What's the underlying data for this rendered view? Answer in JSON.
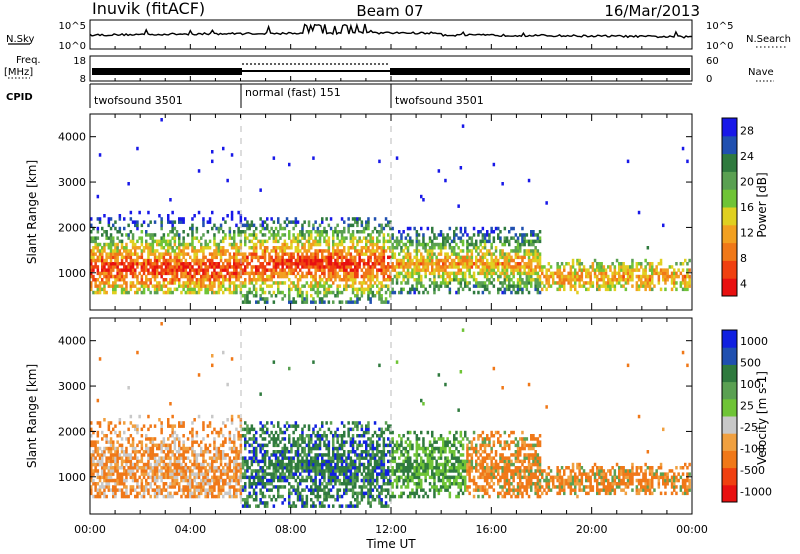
{
  "header": {
    "title": "Inuvik (fitACF)",
    "beam": "Beam 07",
    "date": "16/Mar/2013"
  },
  "strips": {
    "nsky_label": "N.Sky",
    "nsky_ticks": [
      "10^5",
      "10^0"
    ],
    "nsearch_label": "N.Search",
    "nsearch_ticks": [
      "10^5",
      "10^0"
    ],
    "freq_label": "Freq.",
    "freq_unit": "[MHz]",
    "freq_ticks": [
      "18",
      "8"
    ],
    "nave_label": "Nave",
    "nave_ticks": [
      "60",
      "0"
    ],
    "cpid_label": "CPID",
    "cpid_segments": [
      {
        "label": "twofsound 3501",
        "start_hour": 0,
        "end_hour": 6
      },
      {
        "label": "normal (fast) 151",
        "start_hour": 6,
        "end_hour": 12
      },
      {
        "label": "twofsound 3501",
        "start_hour": 12,
        "end_hour": 24
      }
    ]
  },
  "chart_data": [
    {
      "type": "heatmap",
      "title": "",
      "xlabel": "Time UT",
      "ylabel": "Slant Range [km]",
      "xlim": [
        0,
        24
      ],
      "ylim": [
        180,
        4500
      ],
      "x_ticks": [
        "00:00",
        "04:00",
        "08:00",
        "12:00",
        "16:00",
        "20:00",
        "00:00"
      ],
      "y_ticks": [
        1000,
        2000,
        3000,
        4000
      ],
      "colorbar": {
        "label": "Power [dB]",
        "ticks": [
          "28",
          "24",
          "20",
          "16",
          "12",
          "8",
          "4"
        ],
        "range": [
          0,
          30
        ],
        "colors": [
          "#1818e8",
          "#2050b0",
          "#2f7a3e",
          "#5aa052",
          "#6fc436",
          "#e0d020",
          "#f2a020",
          "#f07818",
          "#f04010",
          "#e81010"
        ]
      },
      "backscatter_bands": [
        {
          "start_hour": 0,
          "end_hour": 6,
          "range_km": [
            500,
            2400
          ],
          "peak_km": 1100
        },
        {
          "start_hour": 6,
          "end_hour": 12,
          "range_km": [
            300,
            2200
          ],
          "peak_km": 1200
        },
        {
          "start_hour": 12,
          "end_hour": 18,
          "range_km": [
            500,
            2000
          ],
          "peak_km": 1200
        },
        {
          "start_hour": 18,
          "end_hour": 24,
          "range_km": [
            600,
            1300
          ],
          "peak_km": 900
        }
      ]
    },
    {
      "type": "heatmap",
      "title": "",
      "xlabel": "Time UT",
      "ylabel": "Slant Range [km]",
      "xlim": [
        0,
        24
      ],
      "ylim": [
        180,
        4500
      ],
      "x_ticks": [
        "00:00",
        "04:00",
        "08:00",
        "12:00",
        "16:00",
        "20:00",
        "00:00"
      ],
      "y_ticks": [
        1000,
        2000,
        3000,
        4000
      ],
      "colorbar": {
        "label": "Velocity [m s-1]",
        "ticks": [
          "1000",
          "500",
          "100",
          "25",
          "-25",
          "-100",
          "-500",
          "-1000"
        ],
        "range": [
          -1000,
          1000
        ],
        "colors": [
          "#1020e0",
          "#2050b0",
          "#2f7a3e",
          "#5aa052",
          "#6fc436",
          "#c8c8c8",
          "#f0a040",
          "#f07818",
          "#f04010",
          "#e81010"
        ]
      }
    }
  ]
}
